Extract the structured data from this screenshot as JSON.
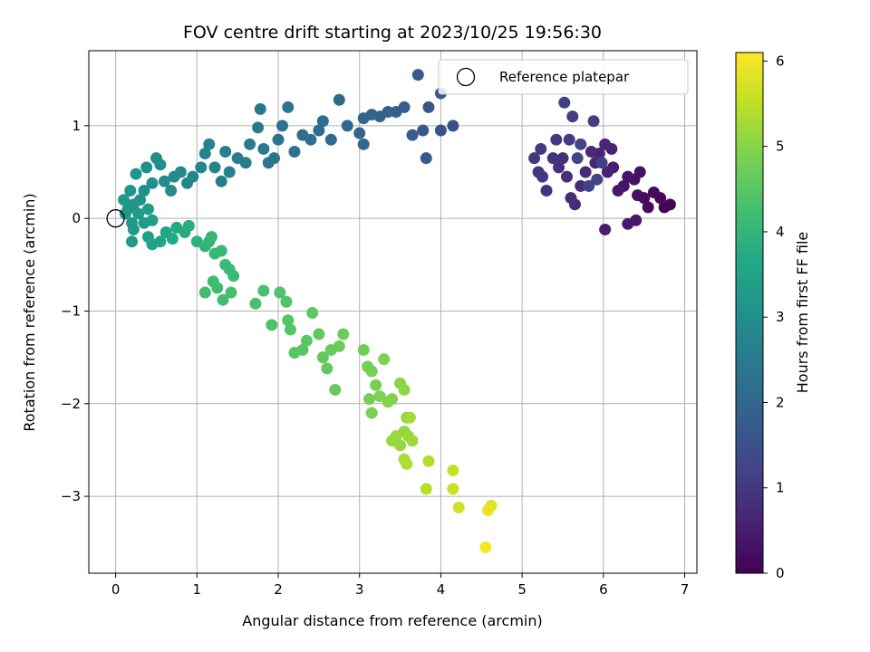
{
  "chart_data": {
    "type": "scatter",
    "title": "FOV centre drift starting at 2023/10/25 19:56:30",
    "xlabel": "Angular distance from reference (arcmin)",
    "ylabel": "Rotation from reference (arcmin)",
    "xlim": [
      -0.33,
      7.15
    ],
    "ylim": [
      -3.83,
      1.81
    ],
    "xticks": [
      0,
      1,
      2,
      3,
      4,
      5,
      6,
      7
    ],
    "yticks": [
      -3,
      -2,
      -1,
      0,
      1
    ],
    "grid": true,
    "legend": {
      "placement": "top-right",
      "label": "Reference platepar"
    },
    "reference_point": {
      "x": 0,
      "y": 0
    },
    "colorbar": {
      "label": "Hours from first FF file",
      "colormap": "viridis",
      "range": [
        0,
        6.1
      ],
      "ticks": [
        0,
        1,
        2,
        3,
        4,
        5,
        6
      ]
    },
    "points": [
      {
        "x": 6.75,
        "y": 0.12,
        "t": 0.05
      },
      {
        "x": 6.82,
        "y": 0.15,
        "t": 0.08
      },
      {
        "x": 6.7,
        "y": 0.22,
        "t": 0.12
      },
      {
        "x": 6.62,
        "y": 0.28,
        "t": 0.15
      },
      {
        "x": 6.55,
        "y": 0.12,
        "t": 0.18
      },
      {
        "x": 6.5,
        "y": 0.22,
        "t": 0.2
      },
      {
        "x": 6.42,
        "y": 0.25,
        "t": 0.25
      },
      {
        "x": 6.45,
        "y": 0.5,
        "t": 0.28
      },
      {
        "x": 6.38,
        "y": 0.42,
        "t": 0.3
      },
      {
        "x": 6.3,
        "y": 0.45,
        "t": 0.35
      },
      {
        "x": 6.25,
        "y": 0.35,
        "t": 0.38
      },
      {
        "x": 6.18,
        "y": 0.3,
        "t": 0.4
      },
      {
        "x": 6.4,
        "y": -0.02,
        "t": 0.42
      },
      {
        "x": 6.3,
        "y": -0.06,
        "t": 0.45
      },
      {
        "x": 6.02,
        "y": -0.12,
        "t": 0.48
      },
      {
        "x": 6.12,
        "y": 0.55,
        "t": 0.5
      },
      {
        "x": 6.05,
        "y": 0.5,
        "t": 0.55
      },
      {
        "x": 6.1,
        "y": 0.75,
        "t": 0.6
      },
      {
        "x": 6.02,
        "y": 0.8,
        "t": 0.62
      },
      {
        "x": 5.95,
        "y": 0.7,
        "t": 0.65
      },
      {
        "x": 5.9,
        "y": 0.6,
        "t": 0.68
      },
      {
        "x": 5.85,
        "y": 0.72,
        "t": 0.7
      },
      {
        "x": 5.78,
        "y": 0.5,
        "t": 0.72
      },
      {
        "x": 5.72,
        "y": 0.35,
        "t": 0.75
      },
      {
        "x": 5.65,
        "y": 0.15,
        "t": 0.78
      },
      {
        "x": 5.6,
        "y": 0.22,
        "t": 0.8
      },
      {
        "x": 5.55,
        "y": 0.45,
        "t": 0.82
      },
      {
        "x": 5.5,
        "y": 0.65,
        "t": 0.85
      },
      {
        "x": 5.45,
        "y": 0.55,
        "t": 0.88
      },
      {
        "x": 5.38,
        "y": 0.65,
        "t": 0.9
      },
      {
        "x": 5.3,
        "y": 0.3,
        "t": 0.92
      },
      {
        "x": 5.25,
        "y": 0.45,
        "t": 0.95
      },
      {
        "x": 5.2,
        "y": 0.5,
        "t": 0.98
      },
      {
        "x": 5.15,
        "y": 0.65,
        "t": 1.0
      },
      {
        "x": 5.23,
        "y": 0.75,
        "t": 1.02
      },
      {
        "x": 5.42,
        "y": 0.85,
        "t": 1.05
      },
      {
        "x": 5.58,
        "y": 0.85,
        "t": 1.08
      },
      {
        "x": 5.62,
        "y": 1.1,
        "t": 1.1
      },
      {
        "x": 5.52,
        "y": 1.25,
        "t": 1.12
      },
      {
        "x": 5.88,
        "y": 1.05,
        "t": 1.15
      },
      {
        "x": 5.98,
        "y": 0.6,
        "t": 1.18
      },
      {
        "x": 5.92,
        "y": 0.42,
        "t": 1.2
      },
      {
        "x": 5.82,
        "y": 0.35,
        "t": 1.22
      },
      {
        "x": 5.72,
        "y": 0.8,
        "t": 1.25
      },
      {
        "x": 5.68,
        "y": 0.65,
        "t": 1.28
      },
      {
        "x": 4.15,
        "y": 1.0,
        "t": 1.5
      },
      {
        "x": 4.0,
        "y": 0.95,
        "t": 1.55
      },
      {
        "x": 4.0,
        "y": 1.35,
        "t": 1.6
      },
      {
        "x": 3.85,
        "y": 1.2,
        "t": 1.65
      },
      {
        "x": 3.78,
        "y": 0.95,
        "t": 1.7
      },
      {
        "x": 3.82,
        "y": 0.65,
        "t": 1.72
      },
      {
        "x": 3.72,
        "y": 1.55,
        "t": 1.75
      },
      {
        "x": 3.65,
        "y": 0.9,
        "t": 1.78
      },
      {
        "x": 3.55,
        "y": 1.2,
        "t": 1.8
      },
      {
        "x": 3.45,
        "y": 1.15,
        "t": 1.85
      },
      {
        "x": 3.35,
        "y": 1.15,
        "t": 1.88
      },
      {
        "x": 3.25,
        "y": 1.1,
        "t": 1.9
      },
      {
        "x": 3.15,
        "y": 1.12,
        "t": 1.95
      },
      {
        "x": 3.05,
        "y": 1.08,
        "t": 1.98
      },
      {
        "x": 3.0,
        "y": 0.92,
        "t": 2.0
      },
      {
        "x": 3.05,
        "y": 0.8,
        "t": 2.02
      },
      {
        "x": 2.85,
        "y": 1.0,
        "t": 2.05
      },
      {
        "x": 2.75,
        "y": 1.28,
        "t": 2.1
      },
      {
        "x": 2.65,
        "y": 0.85,
        "t": 2.12
      },
      {
        "x": 2.55,
        "y": 1.05,
        "t": 2.15
      },
      {
        "x": 2.5,
        "y": 0.95,
        "t": 2.18
      },
      {
        "x": 2.4,
        "y": 0.85,
        "t": 2.2
      },
      {
        "x": 2.3,
        "y": 0.9,
        "t": 2.25
      },
      {
        "x": 2.2,
        "y": 0.72,
        "t": 2.28
      },
      {
        "x": 2.12,
        "y": 1.2,
        "t": 2.3
      },
      {
        "x": 2.05,
        "y": 1.0,
        "t": 2.32
      },
      {
        "x": 2.0,
        "y": 0.85,
        "t": 2.35
      },
      {
        "x": 1.95,
        "y": 0.65,
        "t": 2.38
      },
      {
        "x": 1.88,
        "y": 0.6,
        "t": 2.4
      },
      {
        "x": 1.82,
        "y": 0.75,
        "t": 2.42
      },
      {
        "x": 1.78,
        "y": 1.18,
        "t": 2.45
      },
      {
        "x": 1.75,
        "y": 0.98,
        "t": 2.5
      },
      {
        "x": 1.65,
        "y": 0.8,
        "t": 2.52
      },
      {
        "x": 1.6,
        "y": 0.6,
        "t": 2.55
      },
      {
        "x": 1.5,
        "y": 0.65,
        "t": 2.58
      },
      {
        "x": 1.4,
        "y": 0.5,
        "t": 2.6
      },
      {
        "x": 1.35,
        "y": 0.72,
        "t": 2.62
      },
      {
        "x": 1.3,
        "y": 0.4,
        "t": 2.65
      },
      {
        "x": 1.22,
        "y": 0.55,
        "t": 2.68
      },
      {
        "x": 1.15,
        "y": 0.8,
        "t": 2.7
      },
      {
        "x": 1.1,
        "y": 0.7,
        "t": 2.72
      },
      {
        "x": 1.05,
        "y": 0.55,
        "t": 2.75
      },
      {
        "x": 0.95,
        "y": 0.45,
        "t": 2.78
      },
      {
        "x": 0.88,
        "y": 0.38,
        "t": 2.8
      },
      {
        "x": 0.8,
        "y": 0.5,
        "t": 2.85
      },
      {
        "x": 0.72,
        "y": 0.45,
        "t": 2.88
      },
      {
        "x": 0.68,
        "y": 0.3,
        "t": 2.9
      },
      {
        "x": 0.6,
        "y": 0.4,
        "t": 2.92
      },
      {
        "x": 0.55,
        "y": 0.58,
        "t": 2.95
      },
      {
        "x": 0.5,
        "y": 0.65,
        "t": 2.98
      },
      {
        "x": 0.45,
        "y": 0.38,
        "t": 3.0
      },
      {
        "x": 0.38,
        "y": 0.55,
        "t": 3.02
      },
      {
        "x": 0.35,
        "y": 0.3,
        "t": 3.05
      },
      {
        "x": 0.3,
        "y": 0.2,
        "t": 3.08
      },
      {
        "x": 0.25,
        "y": 0.48,
        "t": 3.1
      },
      {
        "x": 0.22,
        "y": 0.15,
        "t": 3.12
      },
      {
        "x": 0.18,
        "y": 0.3,
        "t": 3.15
      },
      {
        "x": 0.15,
        "y": 0.1,
        "t": 3.18
      },
      {
        "x": 0.12,
        "y": 0.05,
        "t": 3.2
      },
      {
        "x": 0.1,
        "y": 0.2,
        "t": 3.22
      },
      {
        "x": 0.2,
        "y": -0.05,
        "t": 3.25
      },
      {
        "x": 0.22,
        "y": -0.12,
        "t": 3.28
      },
      {
        "x": 0.2,
        "y": -0.25,
        "t": 3.3
      },
      {
        "x": 0.28,
        "y": 0.05,
        "t": 3.32
      },
      {
        "x": 0.35,
        "y": -0.05,
        "t": 3.35
      },
      {
        "x": 0.4,
        "y": 0.1,
        "t": 3.38
      },
      {
        "x": 0.45,
        "y": -0.02,
        "t": 3.4
      },
      {
        "x": 0.4,
        "y": -0.2,
        "t": 3.45
      },
      {
        "x": 0.45,
        "y": -0.28,
        "t": 3.5
      },
      {
        "x": 0.55,
        "y": -0.25,
        "t": 3.55
      },
      {
        "x": 0.62,
        "y": -0.15,
        "t": 3.6
      },
      {
        "x": 0.7,
        "y": -0.22,
        "t": 3.65
      },
      {
        "x": 0.75,
        "y": -0.1,
        "t": 3.7
      },
      {
        "x": 0.85,
        "y": -0.15,
        "t": 3.75
      },
      {
        "x": 0.9,
        "y": -0.08,
        "t": 3.8
      },
      {
        "x": 1.0,
        "y": -0.25,
        "t": 3.9
      },
      {
        "x": 1.1,
        "y": -0.3,
        "t": 3.95
      },
      {
        "x": 1.15,
        "y": -0.25,
        "t": 4.0
      },
      {
        "x": 1.18,
        "y": -0.2,
        "t": 4.02
      },
      {
        "x": 1.22,
        "y": -0.38,
        "t": 4.05
      },
      {
        "x": 1.3,
        "y": -0.35,
        "t": 4.08
      },
      {
        "x": 1.35,
        "y": -0.5,
        "t": 4.1
      },
      {
        "x": 1.4,
        "y": -0.55,
        "t": 4.12
      },
      {
        "x": 1.45,
        "y": -0.62,
        "t": 4.15
      },
      {
        "x": 1.2,
        "y": -0.68,
        "t": 4.18
      },
      {
        "x": 1.25,
        "y": -0.75,
        "t": 4.2
      },
      {
        "x": 1.1,
        "y": -0.8,
        "t": 4.22
      },
      {
        "x": 1.32,
        "y": -0.88,
        "t": 4.25
      },
      {
        "x": 1.42,
        "y": -0.8,
        "t": 4.28
      },
      {
        "x": 1.72,
        "y": -0.92,
        "t": 4.3
      },
      {
        "x": 1.82,
        "y": -0.78,
        "t": 4.32
      },
      {
        "x": 1.92,
        "y": -1.15,
        "t": 4.35
      },
      {
        "x": 2.02,
        "y": -0.8,
        "t": 4.38
      },
      {
        "x": 2.1,
        "y": -0.9,
        "t": 4.4
      },
      {
        "x": 2.12,
        "y": -1.1,
        "t": 4.42
      },
      {
        "x": 2.15,
        "y": -1.2,
        "t": 4.45
      },
      {
        "x": 2.2,
        "y": -1.45,
        "t": 4.48
      },
      {
        "x": 2.3,
        "y": -1.42,
        "t": 4.5
      },
      {
        "x": 2.35,
        "y": -1.32,
        "t": 4.52
      },
      {
        "x": 2.42,
        "y": -1.02,
        "t": 4.55
      },
      {
        "x": 2.5,
        "y": -1.25,
        "t": 4.58
      },
      {
        "x": 2.55,
        "y": -1.5,
        "t": 4.6
      },
      {
        "x": 2.6,
        "y": -1.62,
        "t": 4.62
      },
      {
        "x": 2.65,
        "y": -1.42,
        "t": 4.65
      },
      {
        "x": 2.7,
        "y": -1.85,
        "t": 4.68
      },
      {
        "x": 2.75,
        "y": -1.38,
        "t": 4.7
      },
      {
        "x": 2.8,
        "y": -1.25,
        "t": 4.72
      },
      {
        "x": 3.05,
        "y": -1.42,
        "t": 4.75
      },
      {
        "x": 3.1,
        "y": -1.6,
        "t": 4.78
      },
      {
        "x": 3.15,
        "y": -1.65,
        "t": 4.8
      },
      {
        "x": 3.2,
        "y": -1.8,
        "t": 4.82
      },
      {
        "x": 3.12,
        "y": -1.95,
        "t": 4.85
      },
      {
        "x": 3.15,
        "y": -2.1,
        "t": 4.88
      },
      {
        "x": 3.25,
        "y": -1.92,
        "t": 4.9
      },
      {
        "x": 3.3,
        "y": -1.52,
        "t": 4.92
      },
      {
        "x": 3.35,
        "y": -1.98,
        "t": 4.95
      },
      {
        "x": 3.4,
        "y": -1.95,
        "t": 4.98
      },
      {
        "x": 3.5,
        "y": -1.78,
        "t": 5.0
      },
      {
        "x": 3.55,
        "y": -1.85,
        "t": 5.05
      },
      {
        "x": 3.58,
        "y": -2.15,
        "t": 5.08
      },
      {
        "x": 3.55,
        "y": -2.3,
        "t": 5.1
      },
      {
        "x": 3.5,
        "y": -2.45,
        "t": 5.12
      },
      {
        "x": 3.45,
        "y": -2.35,
        "t": 5.15
      },
      {
        "x": 3.4,
        "y": -2.4,
        "t": 5.18
      },
      {
        "x": 3.6,
        "y": -2.35,
        "t": 5.2
      },
      {
        "x": 3.65,
        "y": -2.4,
        "t": 5.22
      },
      {
        "x": 3.62,
        "y": -2.15,
        "t": 5.25
      },
      {
        "x": 3.55,
        "y": -2.6,
        "t": 5.3
      },
      {
        "x": 3.58,
        "y": -2.65,
        "t": 5.35
      },
      {
        "x": 3.85,
        "y": -2.62,
        "t": 5.4
      },
      {
        "x": 3.82,
        "y": -2.92,
        "t": 5.45
      },
      {
        "x": 4.15,
        "y": -2.72,
        "t": 5.55
      },
      {
        "x": 4.15,
        "y": -2.92,
        "t": 5.6
      },
      {
        "x": 4.22,
        "y": -3.12,
        "t": 5.65
      },
      {
        "x": 4.62,
        "y": -3.1,
        "t": 5.8
      },
      {
        "x": 4.58,
        "y": -3.15,
        "t": 5.9
      },
      {
        "x": 4.55,
        "y": -3.55,
        "t": 6.05
      }
    ]
  }
}
